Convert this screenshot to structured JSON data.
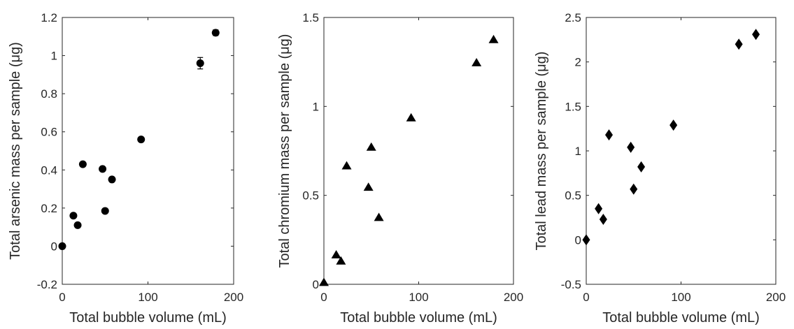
{
  "chart_data": [
    {
      "type": "scatter",
      "xlabel": "Total bubble volume (mL)",
      "ylabel": "Total arsenic mass per sample (μg)",
      "xlim": [
        0,
        200
      ],
      "ylim": [
        -0.2,
        1.2
      ],
      "xticks": [
        0,
        100,
        200
      ],
      "yticks": [
        -0.2,
        0,
        0.2,
        0.4,
        0.6,
        0.8,
        1,
        1.2
      ],
      "xtick_labels": [
        "0",
        "100",
        "200"
      ],
      "ytick_labels": [
        "-0.2",
        "0",
        "0.2",
        "0.4",
        "0.6",
        "0.8",
        "1",
        "1.2"
      ],
      "marker": "circle",
      "color": "#000000",
      "grid": false,
      "points": [
        {
          "x": 0,
          "y": 0
        },
        {
          "x": 13,
          "y": 0.16
        },
        {
          "x": 18,
          "y": 0.11
        },
        {
          "x": 24,
          "y": 0.43
        },
        {
          "x": 47,
          "y": 0.405
        },
        {
          "x": 50,
          "y": 0.185
        },
        {
          "x": 58,
          "y": 0.35
        },
        {
          "x": 92,
          "y": 0.56
        },
        {
          "x": 161,
          "y": 0.96,
          "err": 0.03
        },
        {
          "x": 179,
          "y": 1.12,
          "err": 0.015
        }
      ]
    },
    {
      "type": "scatter",
      "xlabel": "Total bubble volume (mL)",
      "ylabel": "Total chromium mass per sample (μg)",
      "xlim": [
        0,
        200
      ],
      "ylim": [
        0,
        1.5
      ],
      "xticks": [
        0,
        100,
        200
      ],
      "yticks": [
        0,
        0.5,
        1,
        1.5
      ],
      "xtick_labels": [
        "0",
        "100",
        "200"
      ],
      "ytick_labels": [
        "0",
        "0.5",
        "1",
        "1.5"
      ],
      "marker": "triangle",
      "color": "#000000",
      "grid": false,
      "points": [
        {
          "x": 0,
          "y": 0.01
        },
        {
          "x": 13,
          "y": 0.165
        },
        {
          "x": 18,
          "y": 0.13
        },
        {
          "x": 24,
          "y": 0.665
        },
        {
          "x": 47,
          "y": 0.545
        },
        {
          "x": 50,
          "y": 0.77
        },
        {
          "x": 58,
          "y": 0.375
        },
        {
          "x": 92,
          "y": 0.935
        },
        {
          "x": 161,
          "y": 1.245
        },
        {
          "x": 179,
          "y": 1.375
        }
      ]
    },
    {
      "type": "scatter",
      "xlabel": "Total bubble volume (mL)",
      "ylabel": "Total lead mass per sample (μg)",
      "xlim": [
        0,
        200
      ],
      "ylim": [
        -0.5,
        2.5
      ],
      "xticks": [
        0,
        100,
        200
      ],
      "yticks": [
        -0.5,
        0,
        0.5,
        1,
        1.5,
        2,
        2.5
      ],
      "xtick_labels": [
        "0",
        "100",
        "200"
      ],
      "ytick_labels": [
        "-0.5",
        "0",
        "0.5",
        "1",
        "1.5",
        "2",
        "2.5"
      ],
      "marker": "diamond",
      "color": "#000000",
      "grid": false,
      "points": [
        {
          "x": 0,
          "y": 0
        },
        {
          "x": 13,
          "y": 0.35
        },
        {
          "x": 18,
          "y": 0.23
        },
        {
          "x": 24,
          "y": 1.18
        },
        {
          "x": 47,
          "y": 1.04
        },
        {
          "x": 50,
          "y": 0.57
        },
        {
          "x": 58,
          "y": 0.82
        },
        {
          "x": 92,
          "y": 1.29
        },
        {
          "x": 161,
          "y": 2.2
        },
        {
          "x": 179,
          "y": 2.31
        }
      ]
    }
  ]
}
